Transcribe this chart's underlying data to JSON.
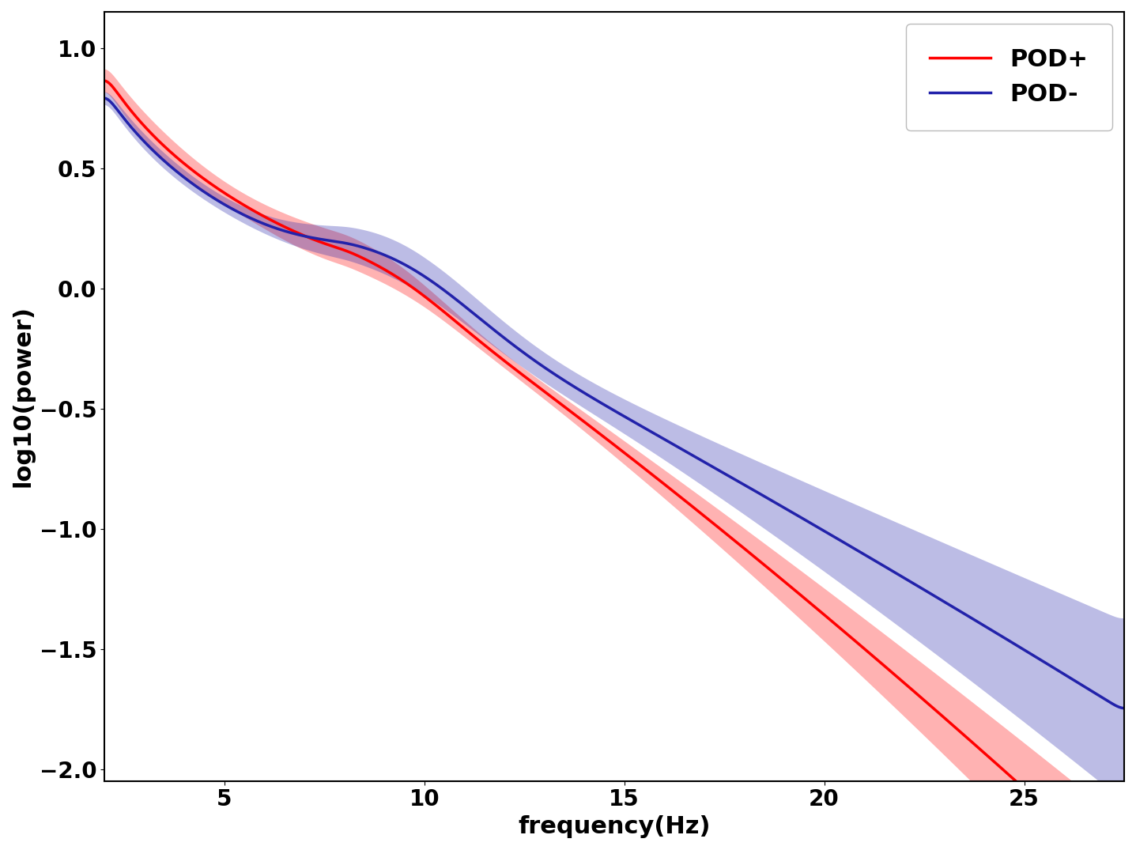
{
  "red_color": "#FF0000",
  "blue_color": "#2222AA",
  "red_fill_alpha": 0.3,
  "blue_fill_alpha": 0.3,
  "line_width": 2.5,
  "xlabel": "frequency(Hz)",
  "ylabel": "log10(power)",
  "xlim": [
    2.0,
    27.5
  ],
  "ylim": [
    -2.05,
    1.15
  ],
  "xticks": [
    5,
    10,
    15,
    20,
    25
  ],
  "yticks": [
    -2.0,
    -1.5,
    -1.0,
    -0.5,
    0.0,
    0.5,
    1.0
  ],
  "legend_labels": [
    "POD+",
    "POD-"
  ],
  "legend_loc": "upper right",
  "fontsize_axis": 22,
  "fontsize_ticks": 20,
  "fontsize_legend": 22,
  "background_color": "#ffffff"
}
